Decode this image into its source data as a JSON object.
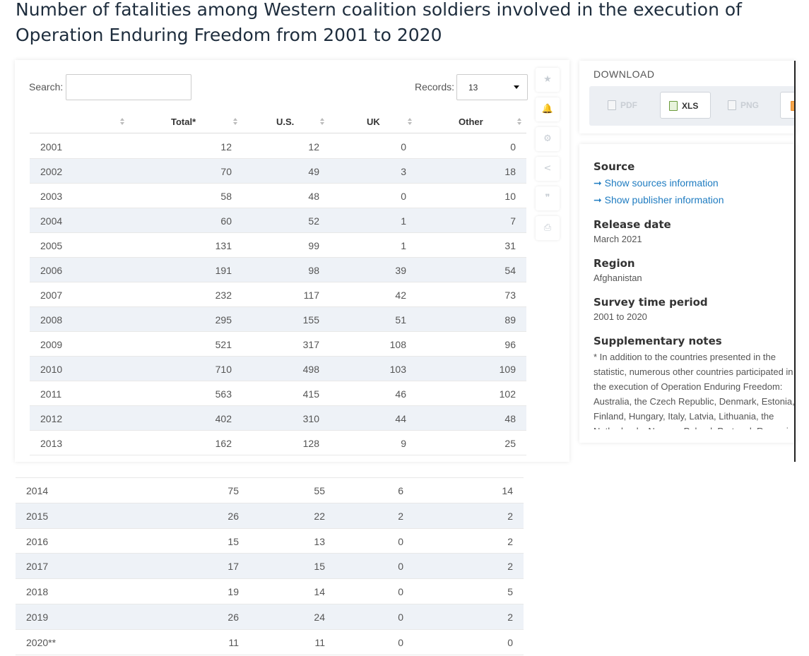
{
  "title": "Number of fatalities among Western coalition soldiers involved in the execution of Operation Enduring Freedom from 2001 to 2020",
  "search": {
    "label": "Search:",
    "value": ""
  },
  "records": {
    "label": "Records:",
    "value": "13"
  },
  "table": {
    "columns": [
      "",
      "Total*",
      "U.S.",
      "UK",
      "Other"
    ],
    "rows_top": [
      [
        "2001",
        "12",
        "12",
        "0",
        "0"
      ],
      [
        "2002",
        "70",
        "49",
        "3",
        "18"
      ],
      [
        "2003",
        "58",
        "48",
        "0",
        "10"
      ],
      [
        "2004",
        "60",
        "52",
        "1",
        "7"
      ],
      [
        "2005",
        "131",
        "99",
        "1",
        "31"
      ],
      [
        "2006",
        "191",
        "98",
        "39",
        "54"
      ],
      [
        "2007",
        "232",
        "117",
        "42",
        "73"
      ],
      [
        "2008",
        "295",
        "155",
        "51",
        "89"
      ],
      [
        "2009",
        "521",
        "317",
        "108",
        "96"
      ],
      [
        "2010",
        "710",
        "498",
        "103",
        "109"
      ],
      [
        "2011",
        "563",
        "415",
        "46",
        "102"
      ],
      [
        "2012",
        "402",
        "310",
        "44",
        "48"
      ],
      [
        "2013",
        "162",
        "128",
        "9",
        "25"
      ]
    ],
    "rows_bottom": [
      [
        "2014",
        "75",
        "55",
        "6",
        "14"
      ],
      [
        "2015",
        "26",
        "22",
        "2",
        "2"
      ],
      [
        "2016",
        "15",
        "13",
        "0",
        "2"
      ],
      [
        "2017",
        "17",
        "15",
        "0",
        "2"
      ],
      [
        "2018",
        "19",
        "14",
        "0",
        "5"
      ],
      [
        "2019",
        "26",
        "24",
        "0",
        "2"
      ],
      [
        "2020**",
        "11",
        "11",
        "0",
        "0"
      ]
    ]
  },
  "toolbar": {
    "icons": [
      "star-icon",
      "bell-icon",
      "gear-icon",
      "share-icon",
      "quote-icon",
      "print-icon"
    ],
    "glyphs": [
      "★",
      "🔔",
      "⚙",
      "<",
      "❞",
      "⎙"
    ]
  },
  "download": {
    "title": "DOWNLOAD",
    "buttons": [
      "PDF",
      "XLS",
      "PNG"
    ]
  },
  "info": {
    "source_label": "Source",
    "show_sources": "➞ Show sources information",
    "show_publisher": "➞ Show publisher information",
    "release_label": "Release date",
    "release_value": "March 2021",
    "region_label": "Region",
    "region_value": "Afghanistan",
    "survey_label": "Survey time period",
    "survey_value": "2001 to 2020",
    "notes_label": "Supplementary notes",
    "notes_text": "* In addition to the countries presented in the statistic, numerous other countries participated in the execution of Operation Enduring Freedom: Australia, the Czech Republic, Denmark, Estonia, Finland, Hungary, Italy, Latvia, Lithuania, the Netherlands, Norway, Poland, Portugal, Romania"
  },
  "colors": {
    "link": "#1f7cc1",
    "row_alt": "#eef2f7",
    "title": "#1e2d3d"
  }
}
